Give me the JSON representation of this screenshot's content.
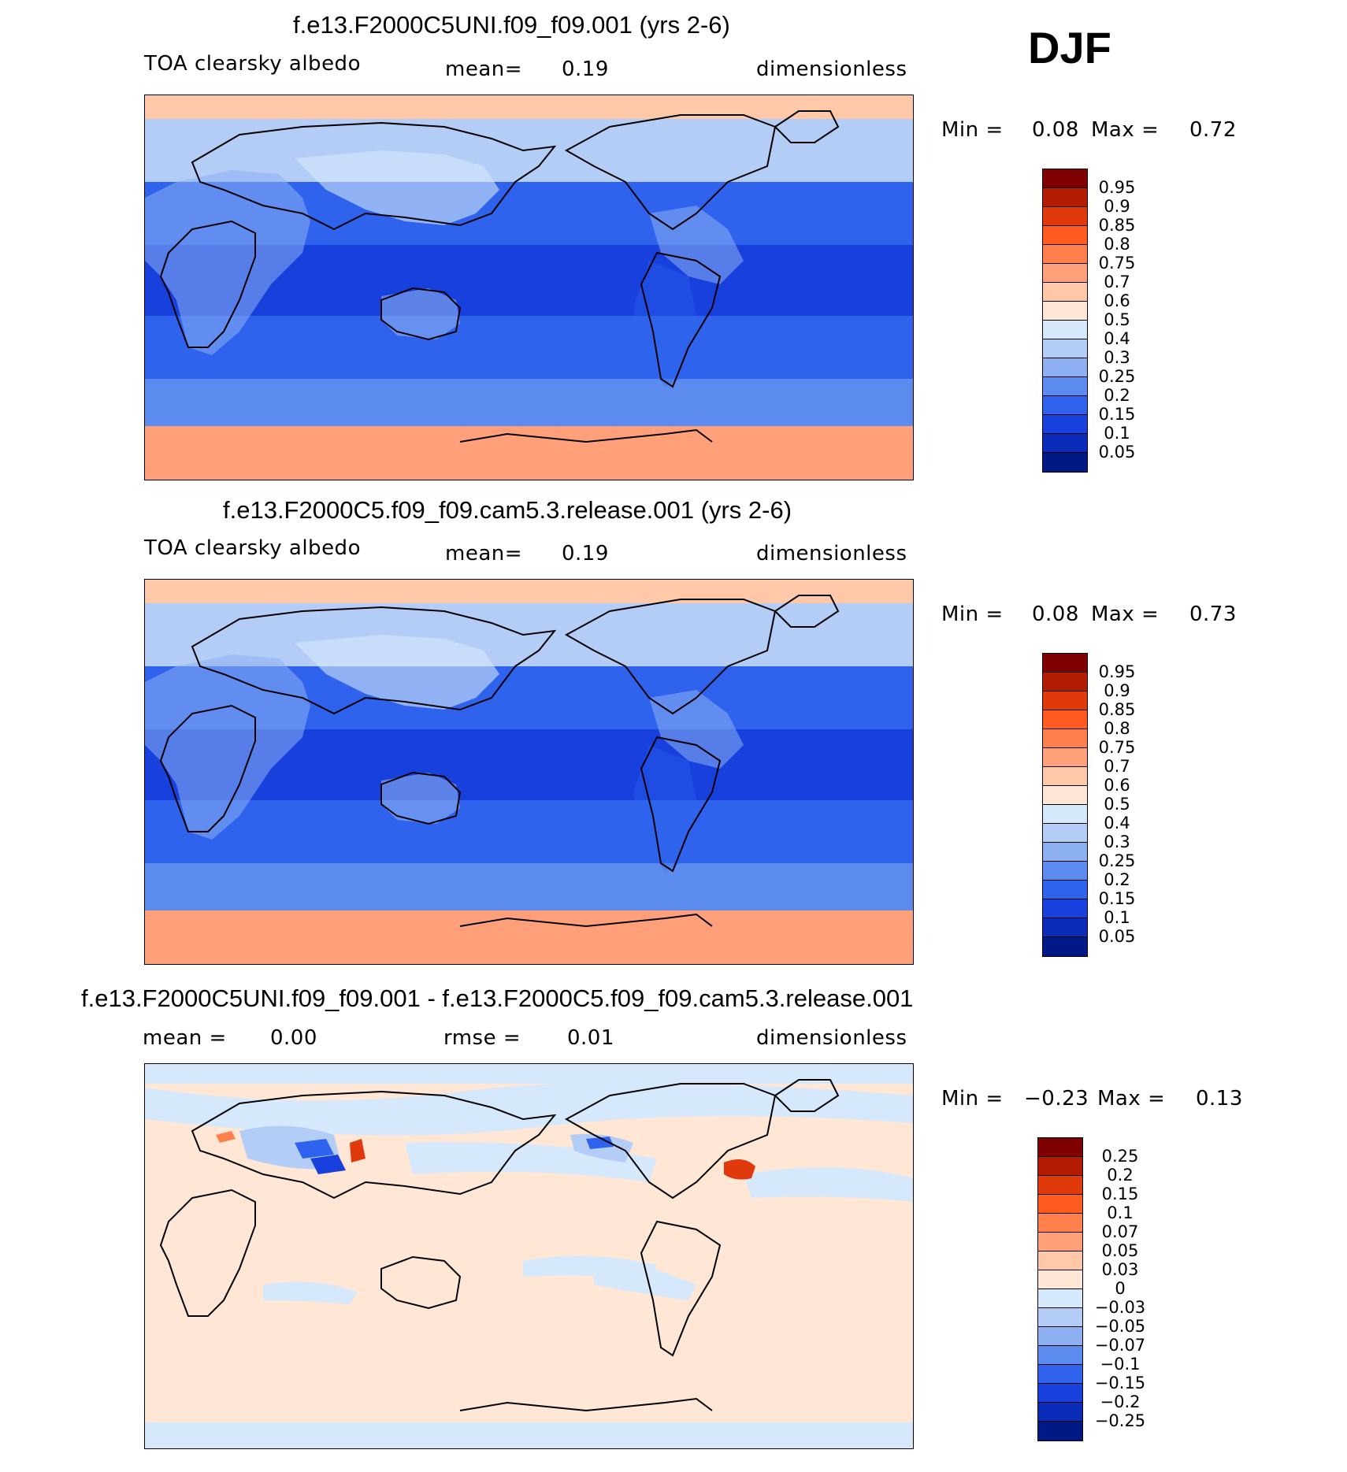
{
  "season": "DJF",
  "panels": [
    {
      "id": "test",
      "title": "f.e13.F2000C5UNI.f09_f09.001 (yrs 2-6)",
      "left_label": "TOA clearsky albedo",
      "mid_label": "mean=",
      "mid_value": "0.19",
      "units": "dimensionless",
      "min_label": "Min =",
      "min_value": "0.08",
      "max_label": "Max =",
      "max_value": "0.72",
      "colorbar": {
        "labels": [
          "0.95",
          "0.9",
          "0.85",
          "0.8",
          "0.75",
          "0.7",
          "0.6",
          "0.5",
          "0.4",
          "0.3",
          "0.25",
          "0.2",
          "0.15",
          "0.1",
          "0.05"
        ],
        "colors": [
          "#7f0000",
          "#b31c00",
          "#e0390c",
          "#ff5a1f",
          "#ff7f4d",
          "#ffa07a",
          "#ffc8a8",
          "#ffe6d5",
          "#d6e8fb",
          "#b3cdf6",
          "#8cb0f2",
          "#5c8bf0",
          "#2f63ee",
          "#1740dc",
          "#0a2cb8",
          "#001a85"
        ]
      },
      "map_levels": {
        "arctic": 0.6,
        "north_midlat": 0.3,
        "north_subtrop": 0.15,
        "tropics": 0.1,
        "south_subtrop": 0.15,
        "south_midlat": 0.2,
        "antarctic": 0.7
      }
    },
    {
      "id": "control",
      "title": "f.e13.F2000C5.f09_f09.cam5.3.release.001 (yrs 2-6)",
      "left_label": "TOA clearsky albedo",
      "mid_label": "mean=",
      "mid_value": "0.19",
      "units": "dimensionless",
      "min_label": "Min =",
      "min_value": "0.08",
      "max_label": "Max =",
      "max_value": "0.73",
      "colorbar": {
        "labels": [
          "0.95",
          "0.9",
          "0.85",
          "0.8",
          "0.75",
          "0.7",
          "0.6",
          "0.5",
          "0.4",
          "0.3",
          "0.25",
          "0.2",
          "0.15",
          "0.1",
          "0.05"
        ],
        "colors": [
          "#7f0000",
          "#b31c00",
          "#e0390c",
          "#ff5a1f",
          "#ff7f4d",
          "#ffa07a",
          "#ffc8a8",
          "#ffe6d5",
          "#d6e8fb",
          "#b3cdf6",
          "#8cb0f2",
          "#5c8bf0",
          "#2f63ee",
          "#1740dc",
          "#0a2cb8",
          "#001a85"
        ]
      },
      "map_levels": {
        "arctic": 0.6,
        "north_midlat": 0.3,
        "north_subtrop": 0.15,
        "tropics": 0.1,
        "south_subtrop": 0.15,
        "south_midlat": 0.2,
        "antarctic": 0.7
      }
    },
    {
      "id": "difference",
      "title": "f.e13.F2000C5UNI.f09_f09.001 - f.e13.F2000C5.f09_f09.cam5.3.release.001",
      "left_label": "mean =",
      "left_value": "0.00",
      "mid_label": "rmse =",
      "mid_value": "0.01",
      "units": "dimensionless",
      "min_label": "Min =",
      "min_value": "−0.23",
      "max_label": "Max =",
      "max_value": "0.13",
      "colorbar": {
        "labels": [
          "0.25",
          "0.2",
          "0.15",
          "0.1",
          "0.07",
          "0.05",
          "0.03",
          "0",
          "−0.03",
          "−0.05",
          "−0.07",
          "−0.1",
          "−0.15",
          "−0.2",
          "−0.25"
        ],
        "colors": [
          "#7f0000",
          "#b31c00",
          "#e0390c",
          "#ff5a1f",
          "#ff7f4d",
          "#ffa07a",
          "#ffc8a8",
          "#ffe6d5",
          "#d6e8fb",
          "#b3cdf6",
          "#8cb0f2",
          "#5c8bf0",
          "#2f63ee",
          "#1740dc",
          "#0a2cb8",
          "#001a85"
        ]
      }
    }
  ]
}
